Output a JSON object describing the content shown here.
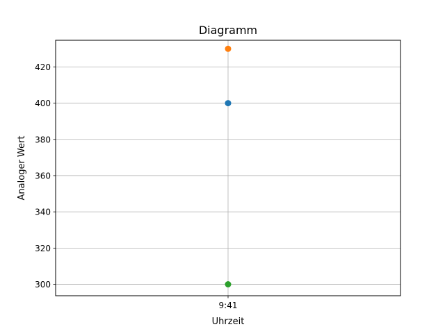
{
  "chart_data": {
    "type": "scatter",
    "title": "Diagramm",
    "xlabel": "Uhrzeit",
    "ylabel": "Analoger Wert",
    "categories": [
      "9:41"
    ],
    "series": [
      {
        "values": [
          400
        ],
        "color": "#1f77b4"
      },
      {
        "values": [
          430
        ],
        "color": "#ff7f0e"
      },
      {
        "values": [
          300
        ],
        "color": "#2ca02c"
      }
    ],
    "ylim": [
      293.7,
      434.7
    ],
    "yticks": [
      300,
      320,
      340,
      360,
      380,
      400,
      420
    ],
    "grid": true,
    "grid_color": "#b0b0b0"
  }
}
